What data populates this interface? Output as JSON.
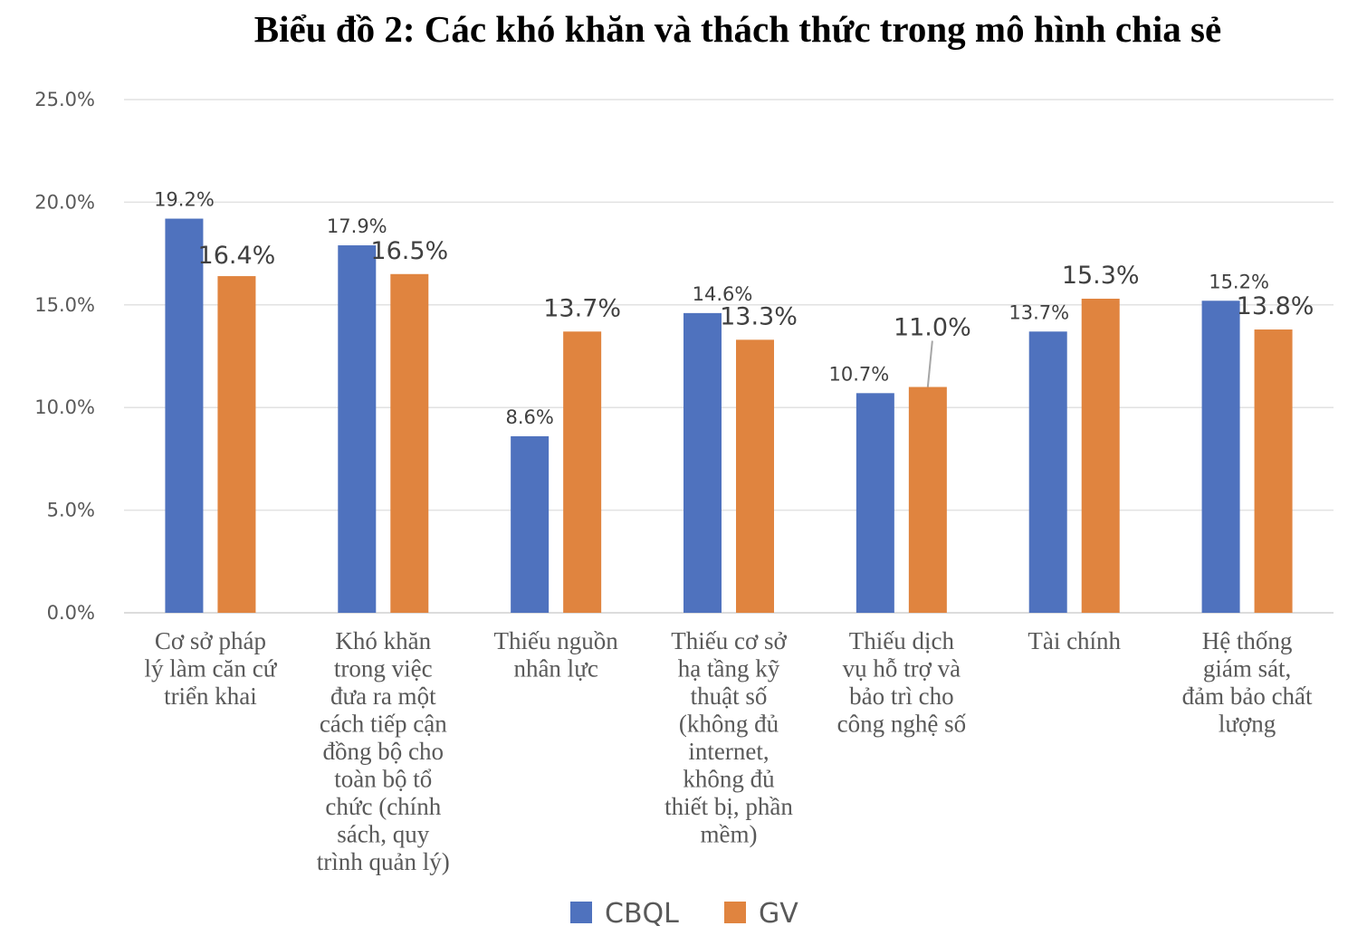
{
  "chart_data": {
    "type": "bar",
    "title": "Biểu đồ 2: Các khó khăn và thách thức trong mô hình chia sẻ",
    "xlabel": "",
    "ylabel": "",
    "ylim": [
      0,
      25
    ],
    "y_ticks": [
      "0.0%",
      "5.0%",
      "10.0%",
      "15.0%",
      "20.0%",
      "25.0%"
    ],
    "grid": true,
    "legend_position": "bottom",
    "categories": [
      "Cơ sở pháp lý làm căn cứ triển khai",
      "Khó khăn trong việc đưa ra một cách tiếp cận đồng bộ cho toàn bộ tổ chức (chính sách, quy trình quản lý)",
      "Thiếu nguồn nhân lực",
      "Thiếu cơ sở hạ tầng kỹ thuật số (không đủ internet, không đủ thiết bị, phần mềm)",
      "Thiếu dịch vụ hỗ trợ và bảo trì cho công nghệ số",
      "Tài chính",
      "Hệ thống giám sát, đảm bảo chất lượng"
    ],
    "category_lines": [
      [
        "Cơ sở pháp",
        "lý làm căn cứ",
        "triển khai"
      ],
      [
        "Khó khăn",
        "trong việc",
        "đưa ra một",
        "cách tiếp cận",
        "đồng bộ cho",
        "toàn bộ tổ",
        "chức (chính",
        "sách, quy",
        "trình quản lý)"
      ],
      [
        "Thiếu nguồn",
        "nhân lực"
      ],
      [
        "Thiếu cơ sở",
        "hạ tầng kỹ",
        "thuật số",
        "(không đủ",
        "internet,",
        "không đủ",
        "thiết bị, phần",
        "mềm)"
      ],
      [
        "Thiếu dịch",
        "vụ hỗ trợ và",
        "bảo trì cho",
        "công nghệ số"
      ],
      [
        "Tài chính"
      ],
      [
        "Hệ thống",
        "giám sát,",
        "đảm bảo chất",
        "lượng"
      ]
    ],
    "series": [
      {
        "name": "CBQL",
        "color": "#4f72be",
        "values": [
          19.2,
          17.9,
          8.6,
          14.6,
          10.7,
          13.7,
          15.2
        ],
        "labels": [
          "19.2%",
          "17.9%",
          "8.6%",
          "14.6%",
          "10.7%",
          "13.7%",
          "15.2%"
        ]
      },
      {
        "name": "GV",
        "color": "#e0843f",
        "values": [
          16.4,
          16.5,
          13.7,
          13.3,
          11.0,
          15.3,
          13.8
        ],
        "labels": [
          "16.4%",
          "16.5%",
          "13.7%",
          "13.3%",
          "11.0%",
          "15.3%",
          "13.8%"
        ]
      }
    ]
  }
}
